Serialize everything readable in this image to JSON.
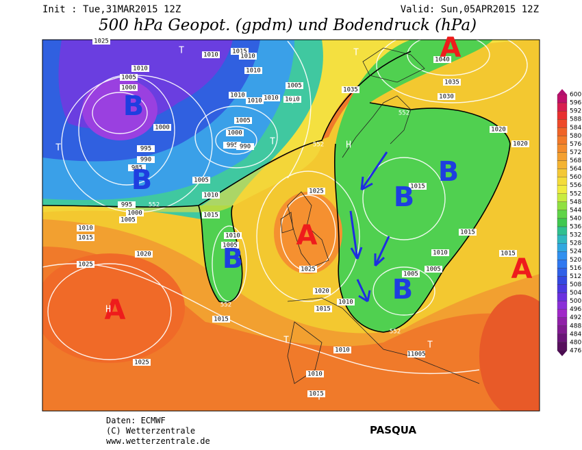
{
  "header": {
    "init": "Init : Tue,31MAR2015  12Z",
    "valid": "Valid: Sun,05APR2015  12Z",
    "title": "500 hPa Geopot. (gpdm) und Bodendruck (hPa)"
  },
  "colorbar": {
    "labels": [
      600,
      596,
      592,
      588,
      584,
      580,
      576,
      572,
      568,
      564,
      560,
      556,
      552,
      548,
      544,
      540,
      536,
      532,
      528,
      524,
      520,
      516,
      512,
      508,
      504,
      500,
      496,
      492,
      488,
      484,
      480,
      476
    ]
  },
  "map": {
    "isobar_labels": [
      1025,
      1010,
      1005,
      1000,
      1010,
      1015,
      1010,
      1010,
      1005,
      1010,
      1010,
      1010,
      1010,
      1035,
      1040,
      1035,
      1030,
      1020,
      1020,
      1000,
      1005,
      1000,
      995,
      990,
      995,
      990,
      985,
      1005,
      1010,
      995,
      1000,
      1005,
      1015,
      1025,
      1015,
      1010,
      1015,
      1010,
      1005,
      1020,
      1025,
      1015,
      1010,
      1015,
      1025,
      1005,
      1005,
      1020,
      1010,
      1015,
      1015,
      1010,
      1025,
      11005,
      1010,
      1015
    ],
    "contour_labels": [
      552,
      552,
      552,
      552,
      552
    ],
    "high_labels": [
      "A",
      "A",
      "A",
      "A"
    ],
    "low_labels": [
      "B",
      "B",
      "B",
      "B",
      "B",
      "B"
    ],
    "small_marks": [
      "T",
      "T",
      "T",
      "T",
      "T",
      "T",
      "T",
      "T",
      "H",
      "H"
    ]
  },
  "footer": {
    "source": "Daten: ECMWF",
    "copyright": "(C) Wetterzentrale",
    "url": "www.wetterzentrale.de",
    "author": "PASQUA"
  }
}
